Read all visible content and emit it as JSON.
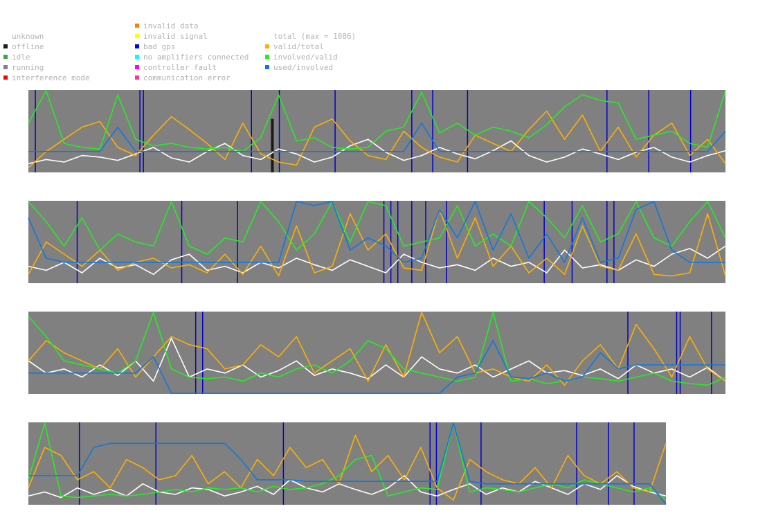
{
  "legend": {
    "col1": [
      {
        "label": "unknown",
        "color": ""
      },
      {
        "label": "offline",
        "color": "#1a1a1a"
      },
      {
        "label": "idle",
        "color": "#39a845"
      },
      {
        "label": "running",
        "color": "#808080"
      },
      {
        "label": "interference mode",
        "color": "#ff0000"
      }
    ],
    "col2": [
      {
        "label": "invalid data",
        "color": "#ff7f00"
      },
      {
        "label": "invalid signal",
        "color": "#ffff00"
      },
      {
        "label": "bad gps",
        "color": "#0000ff"
      },
      {
        "label": "no amplifiers connected",
        "color": "#00ffff"
      },
      {
        "label": "controller fault",
        "color": "#ff00ff"
      },
      {
        "label": "communication error",
        "color": "#ff3399"
      }
    ],
    "col3": [
      {
        "label": "total (max = 1086)",
        "color": ""
      },
      {
        "label": "valid/total",
        "color": "#ffb000"
      },
      {
        "label": "involved/valid",
        "color": "#22ee22"
      },
      {
        "label": "used/involved",
        "color": "#1177dd"
      }
    ]
  },
  "colors": {
    "running_bg": "#808080",
    "bad_gps": "#0000cc",
    "offline": "#1a1a1a",
    "total": "#ffffff",
    "valid_total": "#ffb000",
    "involved_valid": "#22ee22",
    "used_involved": "#1177dd"
  },
  "chart_data": {
    "type": "line",
    "state_band_background": "running",
    "panels": [
      {
        "series": [
          {
            "name": "total (max = 1086)",
            "values": [
              0.1,
              0.15,
              0.12,
              0.2,
              0.18,
              0.14,
              0.22,
              0.3,
              0.17,
              0.12,
              0.25,
              0.35,
              0.2,
              0.15,
              0.28,
              0.22,
              0.12,
              0.18,
              0.32,
              0.4,
              0.24,
              0.14,
              0.2,
              0.3,
              0.22,
              0.16,
              0.26,
              0.38,
              0.2,
              0.12,
              0.18,
              0.28,
              0.22,
              0.15,
              0.24,
              0.3,
              0.18,
              0.12,
              0.2,
              0.26
            ]
          },
          {
            "name": "valid/total",
            "values": [
              0.05,
              0.25,
              0.4,
              0.55,
              0.62,
              0.3,
              0.2,
              0.45,
              0.68,
              0.52,
              0.35,
              0.15,
              0.6,
              0.22,
              0.12,
              0.08,
              0.55,
              0.65,
              0.38,
              0.2,
              0.15,
              0.5,
              0.3,
              0.18,
              0.12,
              0.45,
              0.35,
              0.25,
              0.52,
              0.75,
              0.4,
              0.7,
              0.25,
              0.55,
              0.18,
              0.45,
              0.6,
              0.2,
              0.4,
              0.1
            ]
          },
          {
            "name": "involved/valid",
            "values": [
              0.6,
              1.0,
              0.35,
              0.3,
              0.28,
              0.95,
              0.4,
              0.32,
              0.35,
              0.3,
              0.28,
              0.3,
              0.25,
              0.42,
              0.95,
              0.38,
              0.42,
              0.3,
              0.28,
              0.3,
              0.5,
              0.55,
              0.98,
              0.48,
              0.6,
              0.45,
              0.55,
              0.5,
              0.42,
              0.58,
              0.8,
              0.95,
              0.88,
              0.85,
              0.4,
              0.45,
              0.5,
              0.35,
              0.3,
              1.0
            ]
          },
          {
            "name": "used/involved",
            "values": [
              0.25,
              0.25,
              0.25,
              0.25,
              0.25,
              0.55,
              0.25,
              0.25,
              0.25,
              0.25,
              0.25,
              0.25,
              0.25,
              0.25,
              0.25,
              0.25,
              0.25,
              0.25,
              0.25,
              0.25,
              0.25,
              0.25,
              0.6,
              0.25,
              0.25,
              0.25,
              0.25,
              0.25,
              0.25,
              0.25,
              0.25,
              0.25,
              0.25,
              0.25,
              0.25,
              0.25,
              0.25,
              0.25,
              0.25,
              0.5
            ]
          }
        ],
        "bad_gps_at": [
          0.01,
          0.16,
          0.165,
          0.32,
          0.36,
          0.44,
          0.55,
          0.58,
          0.63,
          0.83,
          0.89,
          0.95
        ],
        "offline_at": [
          0.35
        ]
      },
      {
        "series": [
          {
            "name": "total (max = 1086)",
            "values": [
              0.2,
              0.15,
              0.25,
              0.12,
              0.3,
              0.18,
              0.22,
              0.1,
              0.28,
              0.35,
              0.15,
              0.2,
              0.12,
              0.25,
              0.18,
              0.3,
              0.22,
              0.15,
              0.28,
              0.2,
              0.12,
              0.35,
              0.25,
              0.18,
              0.22,
              0.15,
              0.3,
              0.2,
              0.25,
              0.12,
              0.4,
              0.18,
              0.22,
              0.15,
              0.28,
              0.2,
              0.35,
              0.42,
              0.3,
              0.45
            ]
          },
          {
            "name": "valid/total",
            "values": [
              0.1,
              0.5,
              0.35,
              0.2,
              0.4,
              0.15,
              0.25,
              0.3,
              0.18,
              0.22,
              0.12,
              0.35,
              0.1,
              0.45,
              0.08,
              0.7,
              0.12,
              0.2,
              0.85,
              0.4,
              0.6,
              0.18,
              0.15,
              0.9,
              0.3,
              0.8,
              0.2,
              0.45,
              0.12,
              0.3,
              0.1,
              0.7,
              0.2,
              0.15,
              0.6,
              0.1,
              0.08,
              0.12,
              0.85,
              0.08
            ]
          },
          {
            "name": "involved/valid",
            "values": [
              1.0,
              0.75,
              0.45,
              0.8,
              0.4,
              0.6,
              0.5,
              0.45,
              1.0,
              0.45,
              0.35,
              0.55,
              0.5,
              1.0,
              0.75,
              0.4,
              0.6,
              1.0,
              0.5,
              1.0,
              0.95,
              0.45,
              0.5,
              0.55,
              0.95,
              0.45,
              0.6,
              0.45,
              1.0,
              0.8,
              0.55,
              0.95,
              0.5,
              0.6,
              1.0,
              0.55,
              0.45,
              0.75,
              1.0,
              0.55
            ]
          },
          {
            "name": "used/involved",
            "values": [
              0.8,
              0.3,
              0.25,
              0.25,
              0.25,
              0.25,
              0.25,
              0.25,
              0.25,
              0.25,
              0.25,
              0.25,
              0.25,
              0.25,
              0.25,
              1.0,
              0.95,
              1.0,
              0.4,
              0.55,
              0.45,
              0.25,
              0.3,
              0.9,
              0.55,
              1.0,
              0.4,
              0.85,
              0.3,
              0.6,
              0.25,
              0.8,
              0.25,
              0.3,
              0.9,
              1.0,
              0.4,
              0.25,
              0.25,
              0.25
            ]
          }
        ],
        "bad_gps_at": [
          0.07,
          0.22,
          0.3,
          0.51,
          0.52,
          0.53,
          0.55,
          0.57,
          0.6,
          0.74,
          0.78,
          0.83,
          0.84
        ]
      },
      {
        "series": [
          {
            "name": "total (max = 1086)",
            "values": [
              0.4,
              0.25,
              0.3,
              0.2,
              0.35,
              0.22,
              0.4,
              0.15,
              0.68,
              0.2,
              0.3,
              0.25,
              0.35,
              0.2,
              0.28,
              0.4,
              0.22,
              0.3,
              0.25,
              0.18,
              0.35,
              0.2,
              0.45,
              0.3,
              0.25,
              0.35,
              0.2,
              0.3,
              0.4,
              0.25,
              0.28,
              0.22,
              0.3,
              0.18,
              0.35,
              0.25,
              0.3,
              0.2,
              0.32,
              0.15
            ]
          },
          {
            "name": "valid/total",
            "values": [
              0.4,
              0.65,
              0.5,
              0.4,
              0.3,
              0.55,
              0.2,
              0.45,
              0.7,
              0.6,
              0.55,
              0.3,
              0.35,
              0.6,
              0.45,
              0.7,
              0.25,
              0.4,
              0.55,
              0.15,
              0.6,
              0.2,
              1.0,
              0.5,
              0.7,
              0.25,
              0.3,
              0.2,
              0.15,
              0.35,
              0.1,
              0.4,
              0.6,
              0.3,
              0.85,
              0.55,
              0.2,
              0.7,
              0.3,
              0.15
            ]
          },
          {
            "name": "involved/valid",
            "values": [
              0.95,
              0.7,
              0.4,
              0.35,
              0.3,
              0.25,
              0.4,
              1.0,
              0.3,
              0.2,
              0.18,
              0.2,
              0.15,
              0.25,
              0.2,
              0.3,
              0.35,
              0.25,
              0.4,
              0.65,
              0.55,
              0.3,
              0.25,
              0.2,
              0.15,
              0.2,
              1.0,
              0.15,
              0.18,
              0.12,
              0.15,
              0.2,
              0.18,
              0.15,
              0.2,
              0.25,
              0.15,
              0.12,
              0.1,
              0.2
            ]
          },
          {
            "name": "used/involved",
            "values": [
              0.25,
              0.25,
              0.25,
              0.25,
              0.25,
              0.25,
              0.25,
              0.45,
              0.0,
              0.0,
              0.0,
              0.0,
              0.0,
              0.0,
              0.0,
              0.0,
              0.0,
              0.0,
              0.0,
              0.0,
              0.0,
              0.0,
              0.0,
              0.0,
              0.2,
              0.25,
              0.65,
              0.2,
              0.18,
              0.25,
              0.15,
              0.2,
              0.5,
              0.3,
              0.35,
              0.35,
              0.35,
              0.35,
              0.35,
              0.35
            ]
          }
        ],
        "bad_gps_at": [
          0.24,
          0.25,
          0.86,
          0.93,
          0.935,
          0.98
        ]
      },
      {
        "series": [
          {
            "name": "total (max = 1086)",
            "values": [
              0.1,
              0.15,
              0.08,
              0.2,
              0.12,
              0.18,
              0.1,
              0.25,
              0.15,
              0.12,
              0.2,
              0.18,
              0.1,
              0.15,
              0.22,
              0.12,
              0.3,
              0.2,
              0.15,
              0.25,
              0.18,
              0.12,
              0.2,
              0.35,
              0.15,
              0.1,
              0.18,
              0.25,
              0.12,
              0.2,
              0.15,
              0.28,
              0.2,
              0.12,
              0.25,
              0.18,
              0.35,
              0.22,
              0.15,
              0.1
            ]
          },
          {
            "name": "valid/total",
            "values": [
              0.2,
              0.7,
              0.6,
              0.3,
              0.4,
              0.2,
              0.55,
              0.45,
              0.3,
              0.35,
              0.6,
              0.25,
              0.4,
              0.2,
              0.55,
              0.35,
              0.7,
              0.45,
              0.55,
              0.25,
              0.85,
              0.4,
              0.6,
              0.3,
              0.7,
              0.2,
              0.05,
              0.55,
              0.4,
              0.3,
              0.25,
              0.45,
              0.2,
              0.6,
              0.35,
              0.25,
              0.4,
              0.2,
              0.15,
              0.75
            ]
          },
          {
            "name": "involved/valid",
            "values": [
              0.3,
              1.0,
              0.1,
              0.08,
              0.1,
              0.12,
              0.1,
              0.12,
              0.15,
              0.18,
              0.15,
              0.2,
              0.18,
              0.2,
              0.15,
              0.22,
              0.18,
              0.2,
              0.25,
              0.35,
              0.55,
              0.6,
              0.1,
              0.15,
              0.2,
              0.18,
              1.0,
              0.15,
              0.2,
              0.18,
              0.15,
              0.2,
              0.25,
              0.2,
              0.3,
              0.25,
              0.2,
              0.15,
              0.2,
              0.05
            ]
          },
          {
            "name": "used/involved",
            "values": [
              0.35,
              0.35,
              0.35,
              0.35,
              0.7,
              0.75,
              0.75,
              0.75,
              0.75,
              0.75,
              0.75,
              0.75,
              0.75,
              0.55,
              0.3,
              0.3,
              0.3,
              0.28,
              0.28,
              0.28,
              0.28,
              0.28,
              0.28,
              0.28,
              0.28,
              0.28,
              1.0,
              0.28,
              0.25,
              0.25,
              0.25,
              0.25,
              0.25,
              0.25,
              0.25,
              0.25,
              0.25,
              0.25,
              0.25,
              0.0
            ]
          }
        ],
        "bad_gps_at": [
          0.08,
          0.2,
          0.4,
          0.63,
          0.64,
          0.71,
          0.86,
          0.91,
          0.95
        ]
      }
    ]
  }
}
